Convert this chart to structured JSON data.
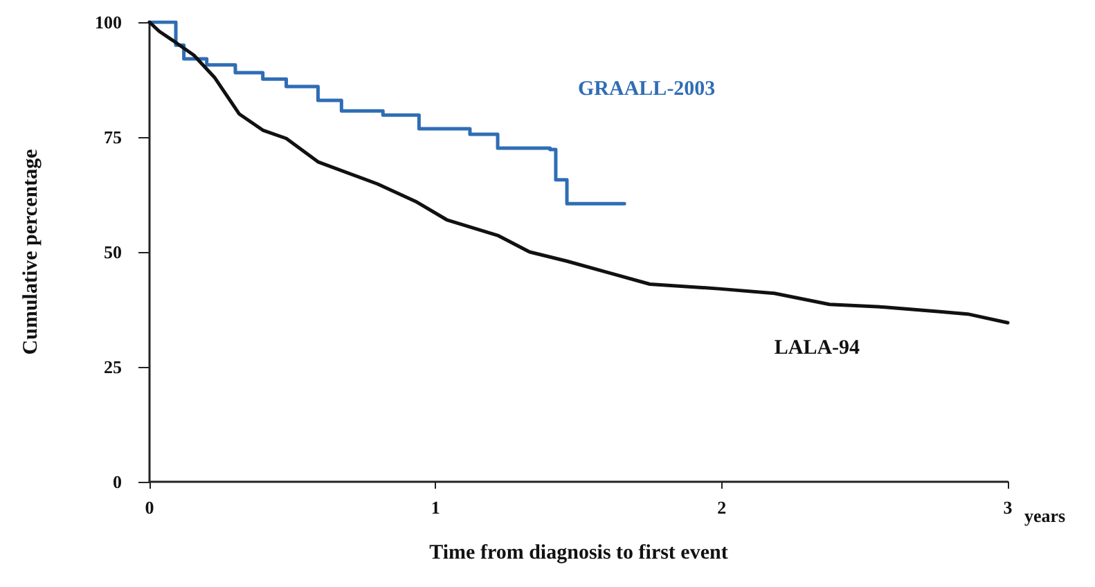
{
  "chart_data": {
    "type": "step",
    "xlabel": "Time from diagnosis to first event",
    "ylabel": "Cumulative percentage",
    "annotations": [
      "years"
    ],
    "xlim": [
      0,
      3
    ],
    "xticks": [
      0,
      1,
      2,
      3
    ],
    "ylim": [
      0,
      100
    ],
    "yticks": [
      0,
      25,
      50,
      75,
      100
    ],
    "grid": false,
    "legend": false,
    "marker": "none",
    "line_style": "solid",
    "series": [
      {
        "name": "GRAALL-2003",
        "color": "#2f6db5",
        "x": [
          0,
          0.043,
          0.092,
          0.12,
          0.2,
          0.3,
          0.396,
          0.478,
          0.589,
          0.671,
          0.816,
          0.942,
          1.12,
          1.217,
          1.4,
          1.42,
          1.459,
          1.66
        ],
        "values": [
          100,
          100,
          95,
          92,
          90.7,
          89,
          87.6,
          86,
          83,
          80.7,
          79.8,
          76.8,
          75.6,
          72.6,
          72.3,
          65.7,
          60.5,
          60.5
        ]
      },
      {
        "name": "LALA-94",
        "color": "#111111",
        "type": "line",
        "x": [
          0,
          0.034,
          0.082,
          0.155,
          0.227,
          0.314,
          0.396,
          0.478,
          0.589,
          0.797,
          0.93,
          1.039,
          1.217,
          1.329,
          1.459,
          1.604,
          1.749,
          1.99,
          2.184,
          2.377,
          2.57,
          2.763,
          2.86,
          3.0
        ],
        "values": [
          100,
          98,
          96,
          92.8,
          88,
          80,
          76.5,
          74.7,
          69.6,
          64.8,
          61,
          57,
          53.6,
          50,
          48,
          45.5,
          43,
          42,
          41,
          38.6,
          38,
          37,
          36.5,
          34.6
        ]
      }
    ]
  }
}
